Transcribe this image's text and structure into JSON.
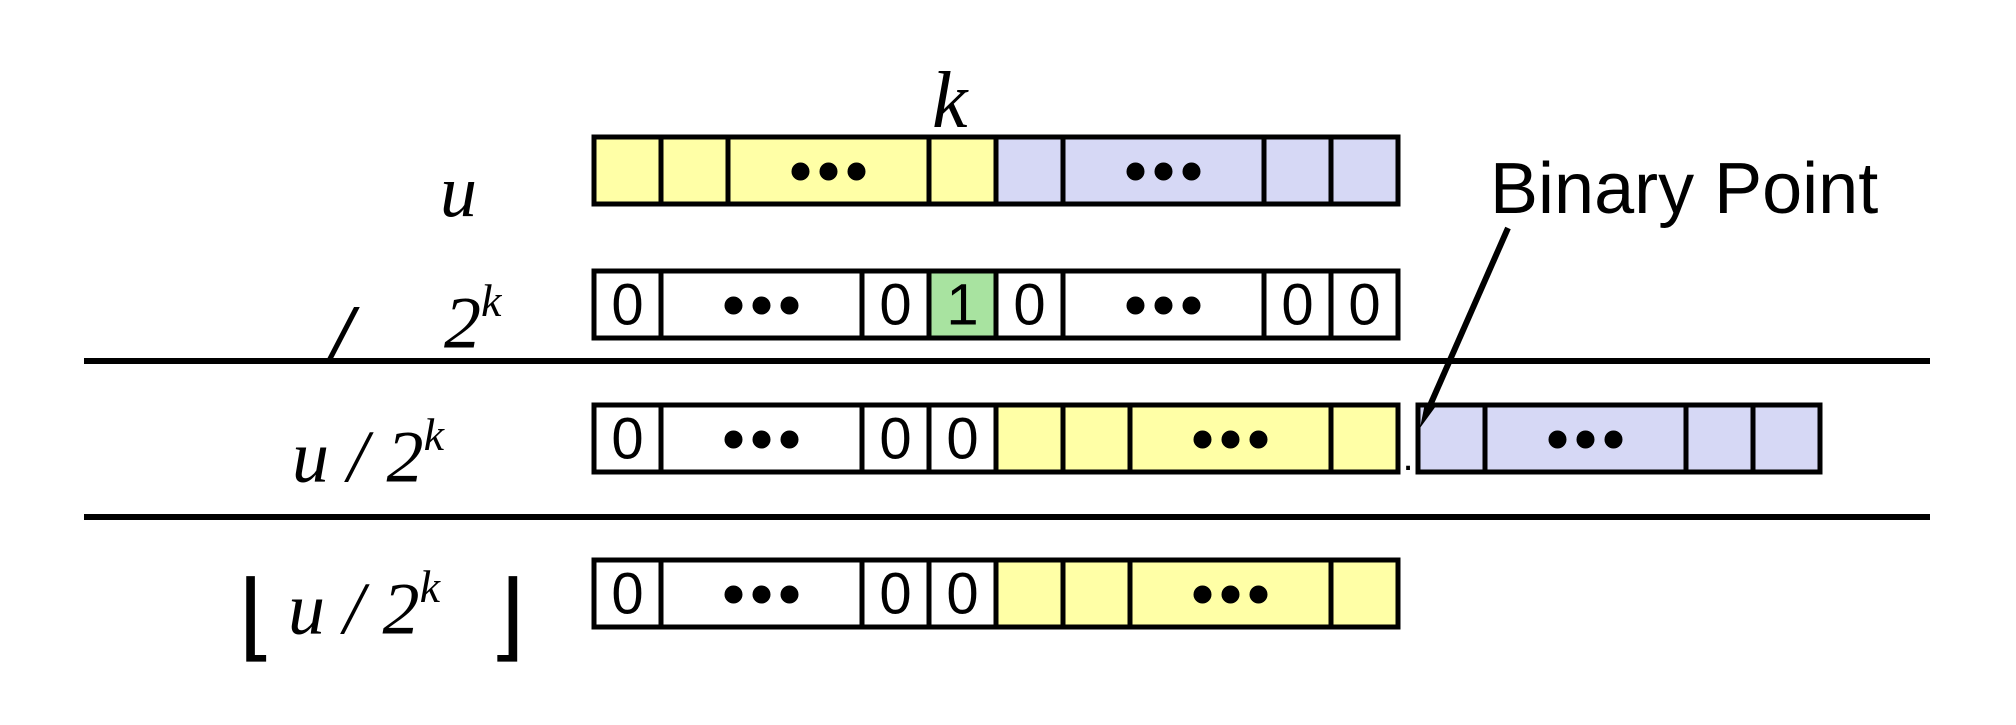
{
  "colors": {
    "yellow": "#FFFFA6",
    "blue": "#D6D8F5",
    "green": "#A8E3A0",
    "white": "#FFFFFF",
    "stroke": "#000000"
  },
  "labels": {
    "k": "k",
    "u": "u",
    "divide_op": "/",
    "two": "2",
    "k_exp": "k",
    "quot_u": "u / 2",
    "floor_u": "u / 2",
    "floor_left": "⌊",
    "floor_right": "⌋",
    "binary_point": "Binary Point",
    "point": "."
  },
  "rows": [
    {
      "name": "row-u",
      "cells": [
        {
          "t": "",
          "c": "yellow"
        },
        {
          "t": "",
          "c": "yellow"
        },
        {
          "t": "dots",
          "c": "yellow",
          "w": 3
        },
        {
          "t": "",
          "c": "yellow"
        },
        {
          "t": "",
          "c": "blue"
        },
        {
          "t": "dots",
          "c": "blue",
          "w": 3
        },
        {
          "t": "",
          "c": "blue"
        },
        {
          "t": "",
          "c": "blue"
        }
      ]
    },
    {
      "name": "row-2k",
      "cells": [
        {
          "t": "0",
          "c": "white"
        },
        {
          "t": "dots",
          "c": "white",
          "w": 3
        },
        {
          "t": "0",
          "c": "white"
        },
        {
          "t": "1",
          "c": "green"
        },
        {
          "t": "0",
          "c": "white"
        },
        {
          "t": "dots",
          "c": "white",
          "w": 3
        },
        {
          "t": "0",
          "c": "white"
        },
        {
          "t": "0",
          "c": "white"
        }
      ]
    },
    {
      "name": "row-quotient",
      "cells": [
        {
          "t": "0",
          "c": "white"
        },
        {
          "t": "dots",
          "c": "white",
          "w": 3
        },
        {
          "t": "0",
          "c": "white"
        },
        {
          "t": "0",
          "c": "white"
        },
        {
          "t": "",
          "c": "yellow"
        },
        {
          "t": "",
          "c": "yellow"
        },
        {
          "t": "dots",
          "c": "yellow",
          "w": 3
        },
        {
          "t": "",
          "c": "yellow"
        }
      ],
      "fraction": [
        {
          "t": "",
          "c": "blue"
        },
        {
          "t": "dots",
          "c": "blue",
          "w": 3
        },
        {
          "t": "",
          "c": "blue"
        },
        {
          "t": "",
          "c": "blue"
        }
      ]
    },
    {
      "name": "row-floor",
      "cells": [
        {
          "t": "0",
          "c": "white"
        },
        {
          "t": "dots",
          "c": "white",
          "w": 3
        },
        {
          "t": "0",
          "c": "white"
        },
        {
          "t": "0",
          "c": "white"
        },
        {
          "t": "",
          "c": "yellow"
        },
        {
          "t": "",
          "c": "yellow"
        },
        {
          "t": "dots",
          "c": "yellow",
          "w": 3
        },
        {
          "t": "",
          "c": "yellow"
        }
      ]
    }
  ]
}
